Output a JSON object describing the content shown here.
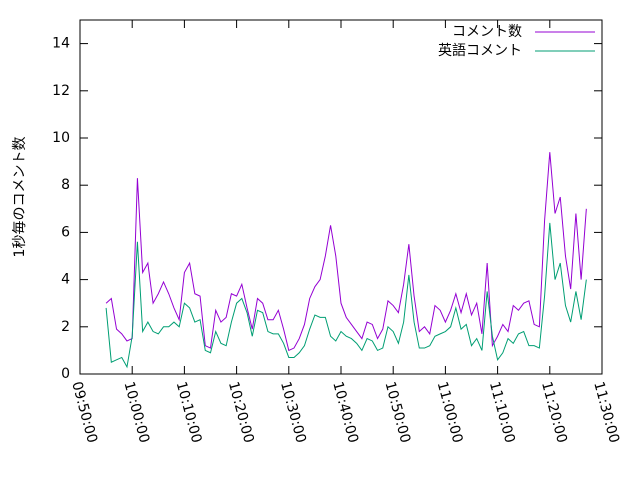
{
  "chart_data": {
    "type": "line",
    "y_label": "1秒毎のコメント数",
    "x": [
      35700,
      35760,
      35820,
      35880,
      35940,
      36000,
      36060,
      36120,
      36180,
      36240,
      36300,
      36360,
      36420,
      36480,
      36540,
      36600,
      36660,
      36720,
      36780,
      36840,
      36900,
      36960,
      37020,
      37080,
      37140,
      37200,
      37260,
      37320,
      37380,
      37440,
      37500,
      37560,
      37620,
      37680,
      37740,
      37800,
      37860,
      37920,
      37980,
      38040,
      38100,
      38160,
      38220,
      38280,
      38340,
      38400,
      38460,
      38520,
      38580,
      38640,
      38700,
      38760,
      38820,
      38880,
      38940,
      39000,
      39060,
      39120,
      39180,
      39240,
      39300,
      39360,
      39420,
      39480,
      39540,
      39600,
      39660,
      39720,
      39780,
      39840,
      39900,
      39960,
      40020,
      40080,
      40140,
      40200,
      40260,
      40320,
      40380,
      40440,
      40500,
      40560,
      40620,
      40680,
      40740,
      40800,
      40860,
      40920,
      40980,
      41040,
      41100,
      41160,
      41220
    ],
    "series": [
      {
        "name": "コメント数",
        "color": "#9400d3",
        "values": [
          3.0,
          3.2,
          1.9,
          1.7,
          1.4,
          1.5,
          8.3,
          4.3,
          4.7,
          3.0,
          3.4,
          3.9,
          3.4,
          2.8,
          2.3,
          4.3,
          4.7,
          3.4,
          3.3,
          1.2,
          1.1,
          2.7,
          2.2,
          2.4,
          3.4,
          3.3,
          3.8,
          2.8,
          1.9,
          3.2,
          3.0,
          2.3,
          2.3,
          2.7,
          1.9,
          1.0,
          1.1,
          1.5,
          2.1,
          3.2,
          3.7,
          4.0,
          5.0,
          6.3,
          5.0,
          3.0,
          2.4,
          2.1,
          1.8,
          1.5,
          2.2,
          2.1,
          1.5,
          1.9,
          3.1,
          2.9,
          2.6,
          3.8,
          5.5,
          3.3,
          1.8,
          2.0,
          1.7,
          2.9,
          2.7,
          2.2,
          2.7,
          3.4,
          2.6,
          3.4,
          2.5,
          3.0,
          1.7,
          4.7,
          1.2,
          1.6,
          2.1,
          1.8,
          2.9,
          2.7,
          3.0,
          3.1,
          2.1,
          2.0,
          6.5,
          9.4,
          6.8,
          7.5,
          5.0,
          3.6,
          6.8,
          4.0,
          7.0
        ]
      },
      {
        "name": "英語コメント",
        "color": "#009e73",
        "values": [
          2.8,
          0.5,
          0.6,
          0.7,
          0.3,
          1.6,
          5.6,
          1.8,
          2.2,
          1.8,
          1.7,
          2.0,
          2.0,
          2.2,
          2.0,
          3.0,
          2.8,
          2.2,
          2.3,
          1.0,
          0.9,
          1.8,
          1.3,
          1.2,
          2.2,
          3.0,
          3.2,
          2.6,
          1.6,
          2.7,
          2.6,
          1.8,
          1.7,
          1.7,
          1.3,
          0.7,
          0.7,
          0.9,
          1.2,
          1.9,
          2.5,
          2.4,
          2.4,
          1.6,
          1.4,
          1.8,
          1.6,
          1.5,
          1.3,
          1.0,
          1.5,
          1.4,
          1.0,
          1.1,
          2.0,
          1.8,
          1.3,
          2.2,
          4.2,
          2.2,
          1.1,
          1.1,
          1.2,
          1.6,
          1.7,
          1.8,
          2.0,
          2.8,
          1.9,
          2.1,
          1.2,
          1.5,
          1.0,
          3.5,
          1.6,
          0.6,
          0.9,
          1.5,
          1.3,
          1.7,
          1.8,
          1.2,
          1.2,
          1.1,
          3.3,
          6.4,
          4.0,
          4.7,
          2.9,
          2.2,
          3.5,
          2.3,
          4.0
        ]
      }
    ],
    "xlim": [
      35400,
      41400
    ],
    "xticks": [
      {
        "value": 35400,
        "label": "09:50:00"
      },
      {
        "value": 36000,
        "label": "10:00:00"
      },
      {
        "value": 36600,
        "label": "10:10:00"
      },
      {
        "value": 37200,
        "label": "10:20:00"
      },
      {
        "value": 37800,
        "label": "10:30:00"
      },
      {
        "value": 38400,
        "label": "10:40:00"
      },
      {
        "value": 39000,
        "label": "10:50:00"
      },
      {
        "value": 39600,
        "label": "11:00:00"
      },
      {
        "value": 40200,
        "label": "11:10:00"
      },
      {
        "value": 40800,
        "label": "11:20:00"
      },
      {
        "value": 41400,
        "label": "11:30:00"
      }
    ],
    "ylim": [
      0,
      15
    ],
    "yticks": [
      0,
      2,
      4,
      6,
      8,
      10,
      12,
      14
    ],
    "legend": "top-right"
  }
}
